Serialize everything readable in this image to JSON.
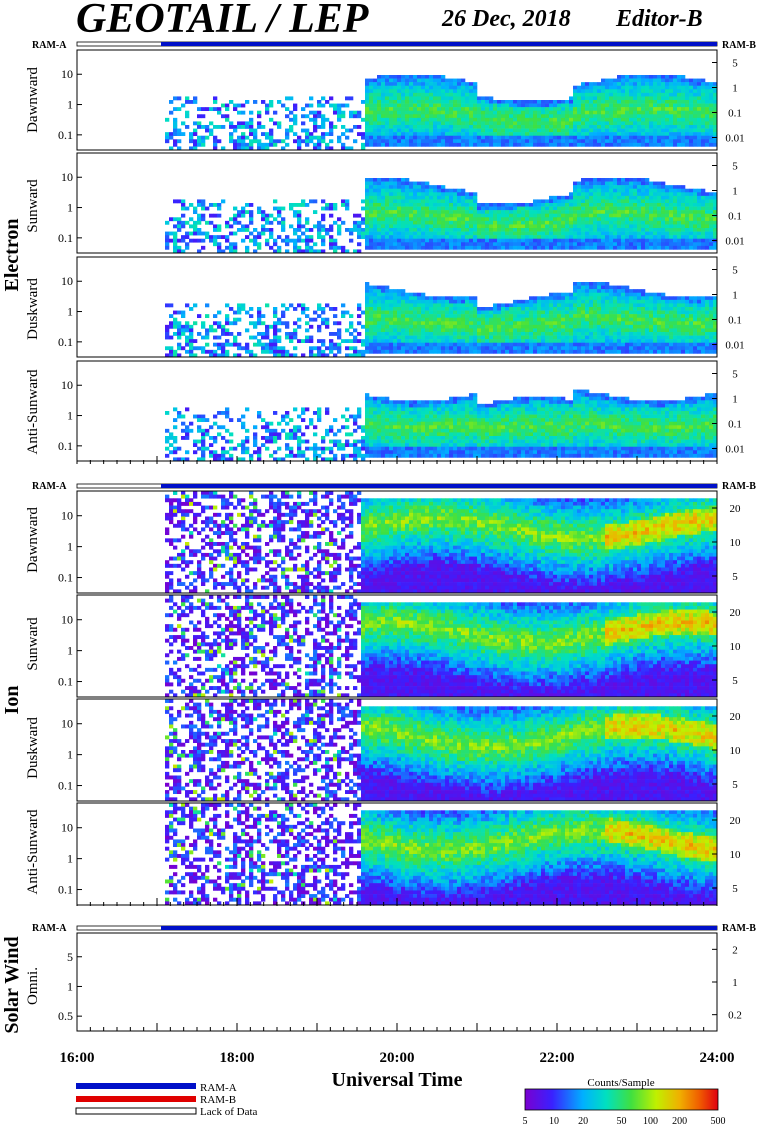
{
  "header": {
    "title": "GEOTAIL / LEP",
    "date": "26 Dec, 2018",
    "editor": "Editor-B"
  },
  "colors": {
    "ram_a": "#0010c8",
    "ram_b": "#e00000",
    "no_data": "#ffffff",
    "low_counts": "#7a1cf0",
    "mid_counts": "#2cd860",
    "high_counts": "#f09020"
  },
  "bars": {
    "left_label": "RAM-A",
    "right_label": "RAM-B"
  },
  "groups": [
    {
      "name": "Electron",
      "panels": [
        "Dawnward",
        "Sunward",
        "Duskward",
        "Anti-Sunward"
      ]
    },
    {
      "name": "Ion",
      "panels": [
        "Dawnward",
        "Sunward",
        "Duskward",
        "Anti-Sunward"
      ]
    },
    {
      "name": "Solar Wind",
      "panels": [
        "Omni."
      ]
    }
  ],
  "axes": {
    "x_label": "Universal Time",
    "x_ticks": [
      "16:00",
      "18:00",
      "20:00",
      "22:00",
      "24:00"
    ],
    "x_range_hours": [
      16,
      24
    ],
    "electron_left_ticks": [
      "10",
      "1",
      "0.1"
    ],
    "electron_right_ticks": [
      "5",
      "1",
      "0.1",
      "0.01"
    ],
    "ion_left_ticks": [
      "10",
      "1",
      "0.1"
    ],
    "ion_right_ticks": [
      "20",
      "10",
      "5"
    ],
    "sw_left_ticks": [
      "5",
      "1",
      "0.5"
    ],
    "sw_right_ticks": [
      "2",
      "1",
      "0.2"
    ]
  },
  "legend": {
    "ram_a": "RAM-A",
    "ram_b": "RAM-B",
    "lack": "Lack of Data"
  },
  "colorbar": {
    "title": "Counts/Sample",
    "ticks": [
      "5",
      "10",
      "20",
      "50",
      "100",
      "200",
      "500"
    ]
  },
  "chart_data": {
    "type": "heatmap",
    "title": "GEOTAIL / LEP",
    "xlabel": "Universal Time",
    "x_range": [
      16,
      24
    ],
    "data_start_hour": 17.05,
    "electron_dense_start_hour": 19.6,
    "ion_dense_start_hour": 19.55,
    "colorbar_range": [
      5,
      500
    ],
    "colorbar_scale": "log",
    "ram_a_hours": [
      [
        17.1,
        24.0
      ]
    ],
    "lack_of_data_hours": [
      [
        16.0,
        17.05
      ]
    ]
  }
}
